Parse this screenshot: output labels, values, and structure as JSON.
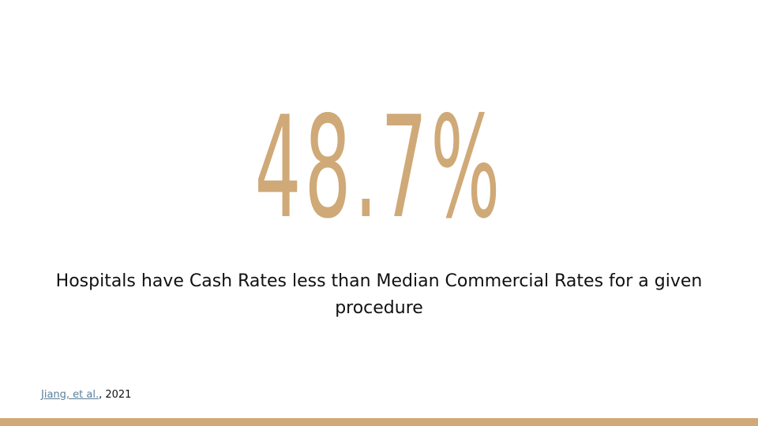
{
  "slide": {
    "statistic": "48.7%",
    "caption": "Hospitals have Cash Rates less than Median Commercial Rates for a given procedure",
    "citation": {
      "link_text": "Jiang, et al.",
      "suffix": ", 2021"
    }
  },
  "colors": {
    "accent": "#cfa977",
    "text": "#111111",
    "link": "#5b7f9a",
    "background": "#ffffff"
  }
}
